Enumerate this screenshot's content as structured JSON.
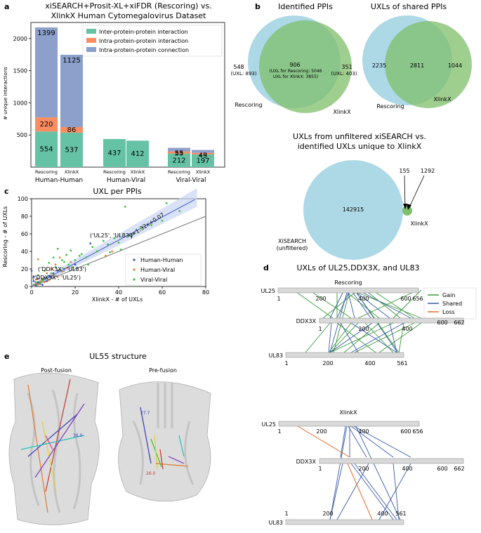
{
  "panel_labels": {
    "a": "a",
    "b": "b",
    "c": "c",
    "d": "d",
    "e": "e"
  },
  "panel_a": {
    "title_line1": "xiSEARCH+Prosit-XL+xiFDR (Rescoring) vs.",
    "title_line2": "XlinkX Human Cytomegalovirus Dataset",
    "legend": [
      "Inter-protein-protein interaction",
      "Intra-protein-protein interaction",
      "Intra-protein-protein connection"
    ]
  },
  "panel_b": {
    "venn1": {
      "title": "Identified PPIs",
      "left_only": "548",
      "left_uxl": "(UXL: 893)",
      "shared": "906",
      "shared_line1": "(UXL for Rescoring: 5046",
      "shared_line2": "UXL for XlinkX: 3855)",
      "right_only": "351",
      "right_uxl": "(UXL: 403)",
      "left_label": "Rescoring",
      "right_label": "XlinkX"
    },
    "venn2": {
      "title": "UXLs of shared PPIs",
      "left_only": "2235",
      "shared": "2811",
      "right_only": "1044",
      "left_label": "Rescoring",
      "right_label": "XlinkX"
    },
    "venn3": {
      "title_line1": "UXLs from unfiltered xiSEARCH vs.",
      "title_line2": "identified UXLs unique to XlinkX",
      "big": "142915",
      "shared": "155",
      "small": "1292",
      "big_label1": "XiSEARCH",
      "big_label2": "(unfiltered)",
      "small_label": "XlinkX"
    }
  },
  "panel_c": {
    "fit_label": "y=1.32x+0.07",
    "annot1": "('UL25', 'UL83')",
    "annot2": "('DDX3X', 'UL83')",
    "annot3": "('DDX3X', 'UL25')"
  },
  "panel_d": {
    "title": "UXLs of UL25,DDX3X, and UL83",
    "sub1": "Rescoring",
    "sub2": "XlinkX",
    "legend": [
      "Gain",
      "Shared",
      "Loss"
    ],
    "proteins": [
      "UL25",
      "DDX3X",
      "UL83"
    ],
    "ul25_ticks": [
      "1",
      "200",
      "400",
      "600",
      "656"
    ],
    "ddx3x_ticks": [
      "1",
      "200",
      "400",
      "600",
      "662"
    ],
    "ul83_ticks": [
      "1",
      "200",
      "400",
      "561"
    ]
  },
  "panel_e": {
    "title": "UL55 structure",
    "post": "Post-fusion",
    "pre": "Pre-fusion",
    "d1": "27.7",
    "d2": "26.0",
    "d3": "36.0"
  },
  "colors": {
    "inter": "#66c2a5",
    "intra_int": "#fc8d62",
    "intra_conn": "#8da0cb",
    "rescoring": "#add8e6",
    "xlinkx": "#7fbf6a",
    "hh": "#3a55c8",
    "hv": "#e07b30",
    "vv": "#3cc23c",
    "gain": "#3a9a3a",
    "shared": "#3a5aa8",
    "loss": "#e86a2a"
  },
  "chart_data": [
    {
      "type": "bar",
      "title": "xiSEARCH+Prosit-XL+xiFDR (Rescoring) vs. XlinkX Human Cytomegalovirus Dataset",
      "ylabel": "# unique interactions",
      "groups": [
        "Human-Human",
        "Human-Viral",
        "Viral-Viral"
      ],
      "categories": [
        "Rescoring",
        "XlinkX",
        "Rescoring",
        "XlinkX",
        "Rescoring",
        "XlinkX"
      ],
      "series": [
        {
          "name": "Inter-protein-protein interaction",
          "values": [
            554,
            537,
            437,
            412,
            212,
            197
          ]
        },
        {
          "name": "Intra-protein-protein interaction",
          "values": [
            220,
            86,
            0,
            0,
            33,
            25
          ]
        },
        {
          "name": "Intra-protein-protein connection",
          "values": [
            1399,
            1125,
            0,
            0,
            55,
            45
          ]
        }
      ],
      "labels": {
        "inter": [
          "554",
          "537",
          "437",
          "412",
          "212",
          "197"
        ],
        "intra_int": [
          "220",
          "86",
          "",
          "",
          "33",
          "25"
        ],
        "intra_conn": [
          "1399",
          "1125",
          "",
          "",
          "55",
          "45"
        ]
      },
      "yticks": [
        500,
        1000,
        1500,
        2000
      ],
      "ylim": [
        0,
        2250
      ]
    },
    {
      "type": "scatter",
      "title": "UXL per PPIs",
      "xlabel": "XlinkX - # of UXLs",
      "ylabel": "Rescoring - # of UXLs",
      "xlim": [
        0,
        80
      ],
      "ylim": [
        0,
        100
      ],
      "xticks": [
        0,
        20,
        40,
        60,
        80
      ],
      "yticks": [
        0,
        20,
        40,
        60,
        80,
        100
      ],
      "legend": [
        "Human-Human",
        "Human-Viral",
        "Viral-Viral"
      ],
      "series": [
        {
          "name": "Human-Human",
          "points": [
            [
              1,
              2
            ],
            [
              2,
              4
            ],
            [
              3,
              5
            ],
            [
              5,
              8
            ],
            [
              4,
              3
            ],
            [
              6,
              10
            ],
            [
              8,
              12
            ],
            [
              2,
              1
            ],
            [
              7,
              6
            ],
            [
              10,
              15
            ],
            [
              12,
              18
            ],
            [
              1,
              6
            ],
            [
              3,
              9
            ],
            [
              9,
              11
            ],
            [
              15,
              20
            ],
            [
              5,
              2
            ],
            [
              27,
              49
            ],
            [
              20,
              25
            ],
            [
              0,
              18
            ],
            [
              1,
              11
            ]
          ]
        },
        {
          "name": "Human-Viral",
          "points": [
            [
              1,
              1
            ],
            [
              2,
              3
            ],
            [
              3,
              2
            ],
            [
              4,
              6
            ],
            [
              6,
              5
            ],
            [
              5,
              9
            ],
            [
              8,
              7
            ],
            [
              10,
              13
            ],
            [
              12,
              11
            ],
            [
              3,
              31
            ],
            [
              7,
              15
            ],
            [
              9,
              20
            ],
            [
              14,
              17
            ],
            [
              11,
              25
            ],
            [
              2,
              8
            ],
            [
              16,
              21
            ],
            [
              13,
              33
            ],
            [
              18,
              28
            ],
            [
              34,
              35
            ],
            [
              37,
              40
            ]
          ]
        },
        {
          "name": "Viral-Viral",
          "points": [
            [
              1,
              2
            ],
            [
              2,
              5
            ],
            [
              4,
              4
            ],
            [
              5,
              7
            ],
            [
              7,
              9
            ],
            [
              3,
              13
            ],
            [
              6,
              18
            ],
            [
              9,
              15
            ],
            [
              11,
              22
            ],
            [
              13,
              19
            ],
            [
              15,
              28
            ],
            [
              17,
              25
            ],
            [
              20,
              30
            ],
            [
              22,
              35
            ],
            [
              25,
              33
            ],
            [
              28,
              45
            ],
            [
              30,
              40
            ],
            [
              33,
              52
            ],
            [
              35,
              48
            ],
            [
              36,
              39
            ],
            [
              38,
              55
            ],
            [
              40,
              50
            ],
            [
              41,
              42
            ],
            [
              43,
              91
            ],
            [
              45,
              58
            ],
            [
              47,
              60
            ],
            [
              50,
              66
            ],
            [
              55,
              70
            ],
            [
              60,
              75
            ],
            [
              68,
              86
            ],
            [
              62,
              95
            ],
            [
              10,
              33
            ],
            [
              16,
              36
            ],
            [
              23,
              37
            ],
            [
              12,
              43
            ],
            [
              18,
              41
            ],
            [
              26,
              25
            ],
            [
              8,
              27
            ],
            [
              14,
              30
            ],
            [
              19,
              22
            ]
          ]
        }
      ],
      "fit": {
        "slope": 1.32,
        "intercept": 0.07
      },
      "identity": {
        "slope": 1,
        "intercept": 0
      }
    }
  ]
}
